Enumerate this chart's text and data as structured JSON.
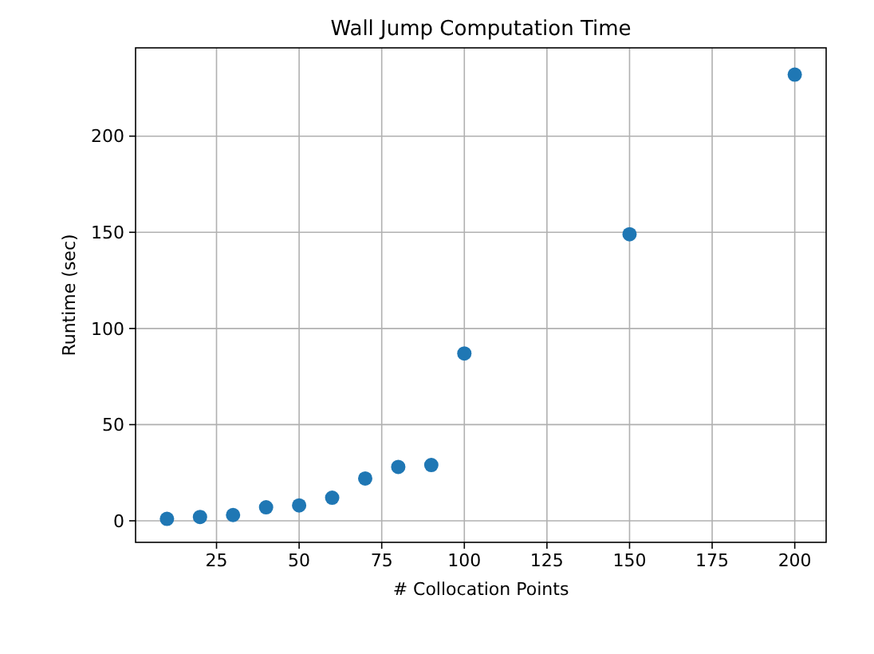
{
  "chart_data": {
    "type": "scatter",
    "title": "Wall Jump Computation Time",
    "xlabel": "# Collocation Points",
    "ylabel": "Runtime (sec)",
    "x": [
      10,
      20,
      30,
      40,
      50,
      60,
      70,
      80,
      90,
      100,
      150,
      200
    ],
    "series": [
      {
        "color": "#1f77b4",
        "values": [
          1,
          2,
          3,
          7,
          8,
          12,
          22,
          28,
          29,
          87,
          149,
          232
        ]
      }
    ],
    "xlim": [
      0.5,
      209.5
    ],
    "ylim": [
      -11.2,
      245.9
    ],
    "xticks": [
      25,
      50,
      75,
      100,
      125,
      150,
      175,
      200
    ],
    "yticks": [
      0,
      50,
      100,
      150,
      200
    ],
    "grid": true,
    "marker": "circle"
  }
}
